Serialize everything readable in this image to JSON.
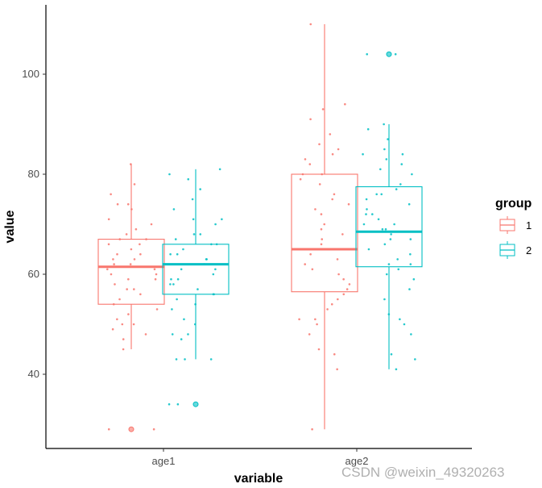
{
  "watermark": "CSDN @weixin_49320263",
  "colors": {
    "group1": "#F8766D",
    "group2": "#00BFC4",
    "axis": "#000000",
    "tick_text": "#4d4d4d"
  },
  "chart_data": {
    "type": "box",
    "title": "",
    "xlabel": "variable",
    "ylabel": "value",
    "categories": [
      "age1",
      "age2"
    ],
    "ylim": [
      26,
      112
    ],
    "yticks": [
      40,
      60,
      80,
      100
    ],
    "grid": false,
    "legend": {
      "title": "group",
      "position": "right",
      "entries": [
        "1",
        "2"
      ]
    },
    "series": [
      {
        "name": "1",
        "boxes": [
          {
            "category": "age1",
            "min": 45,
            "q1": 54,
            "median": 61.5,
            "q3": 67,
            "max": 82,
            "outliers": [
              29
            ]
          },
          {
            "category": "age2",
            "min": 29,
            "q1": 56.5,
            "median": 65,
            "q3": 80,
            "max": 110,
            "outliers": []
          }
        ],
        "points": {
          "age1": [
            82,
            78,
            76,
            74,
            74,
            73,
            71,
            70,
            69,
            68,
            67,
            67,
            66,
            66,
            65,
            64,
            64,
            63,
            63,
            62,
            62,
            61,
            61,
            60,
            60,
            59,
            59,
            58,
            57,
            57,
            56,
            55,
            54,
            53,
            52,
            51,
            50,
            50,
            49,
            48,
            47,
            45,
            29,
            29
          ],
          "age2": [
            110,
            94,
            93,
            91,
            88,
            86,
            85,
            84,
            83,
            82,
            80,
            80,
            79,
            78,
            76,
            75,
            74,
            73,
            72,
            70,
            69,
            68,
            67,
            66,
            65,
            64,
            63,
            62,
            61,
            60,
            59,
            58,
            57,
            56,
            55,
            54,
            53,
            51,
            51,
            50,
            48,
            45,
            44,
            41,
            29
          ]
        }
      },
      {
        "name": "2",
        "boxes": [
          {
            "category": "age1",
            "min": 43,
            "q1": 56,
            "median": 62,
            "q3": 66,
            "max": 81,
            "outliers": [
              34
            ]
          },
          {
            "category": "age2",
            "min": 41,
            "q1": 61.5,
            "median": 68.5,
            "q3": 77.5,
            "max": 90,
            "outliers": [
              104
            ]
          }
        ],
        "points": {
          "age1": [
            81,
            80,
            79,
            77,
            75,
            73,
            71,
            71,
            70,
            68,
            68,
            67,
            66,
            66,
            65,
            64,
            64,
            63,
            63,
            62,
            61,
            61,
            60,
            59,
            59,
            58,
            58,
            57,
            56,
            56,
            55,
            54,
            53,
            51,
            50,
            48,
            48,
            47,
            43,
            43,
            43,
            34,
            34
          ],
          "age2": [
            104,
            104,
            90,
            89,
            87,
            85,
            84,
            84,
            83,
            82,
            81,
            80,
            78,
            77,
            76,
            76,
            75,
            74,
            73,
            72,
            72,
            71,
            70,
            70,
            69,
            69,
            68,
            67,
            67,
            66,
            65,
            64,
            63,
            62,
            62,
            61,
            60,
            59,
            57,
            55,
            52,
            51,
            50,
            48,
            44,
            43,
            41
          ]
        }
      }
    ]
  }
}
